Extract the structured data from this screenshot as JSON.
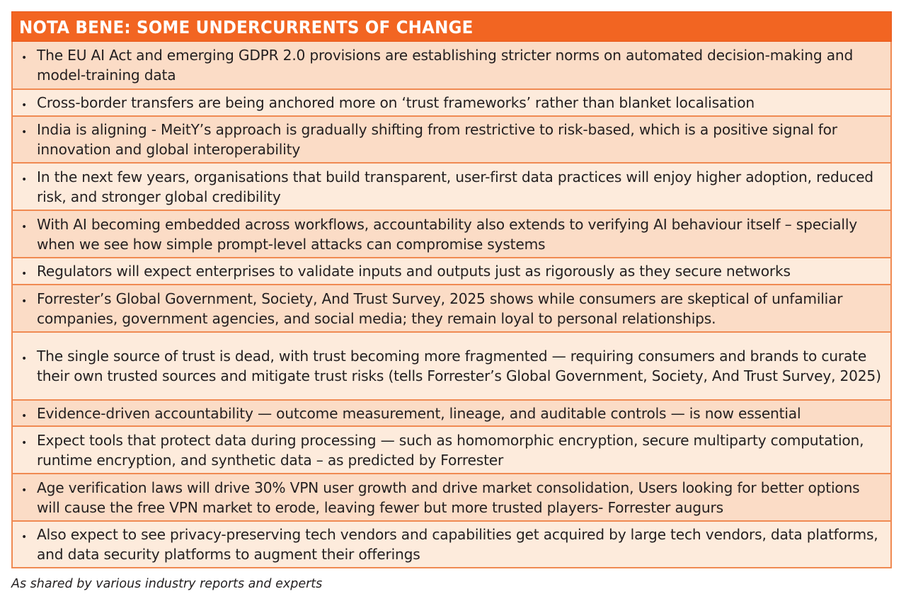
{
  "panel": {
    "title": "NOTA BENE: SOME UNDERCURRENTS OF CHANGE",
    "bullet_glyph": "•",
    "colors": {
      "header": "#f26522",
      "row_light": "#fdebdc",
      "row_dark": "#fbdcc6",
      "border": "#f08a52"
    },
    "items": [
      {
        "text": "The EU AI Act and emerging GDPR 2.0 provisions are establishing stricter norms on automated decision-making and model-training data"
      },
      {
        "text": "Cross-border transfers are being anchored more on ‘trust frameworks’ rather than blanket localisation"
      },
      {
        "text": "India is aligning - MeitY’s approach is gradually shifting from restrictive to risk-based, which is a positive signal for innovation and global interoperability"
      },
      {
        "text": "In the next few years, organisations that build transparent, user-first data practices will enjoy higher adoption, reduced risk, and stronger global credibility"
      },
      {
        "text": "With AI becoming embedded across workflows, accountability also extends to verifying AI behaviour itself – specially when we see how simple prompt-level attacks can compromise systems"
      },
      {
        "text": "Regulators will expect enterprises to validate inputs and outputs just as rigorously as they secure networks"
      },
      {
        "text": "Forrester’s Global Government, Society, And Trust Survey, 2025 shows while consumers are skeptical of unfamiliar companies, government agencies, and social media; they remain loyal to personal relationships."
      },
      {
        "text": "The single source of trust is dead, with trust becoming more fragmented — requiring consumers and brands to curate their own trusted sources and mitigate trust risks (tells Forrester’s Global Government, Society, And Trust Survey, 2025)"
      },
      {
        "text": "Evidence-driven accountability — outcome measurement, lineage, and auditable controls — is now essential"
      },
      {
        "text": "Expect tools that protect data during processing — such as homomorphic encryption, secure multiparty computation, runtime encryption, and synthetic data – as predicted by Forrester"
      },
      {
        "text": "Age verification laws will drive 30% VPN user growth and drive market consolidation, Users looking for better options will cause the free VPN market to erode, leaving fewer but more trusted players- Forrester augurs"
      },
      {
        "text": "Also expect to see privacy-preserving tech vendors and capabilities get acquired by large tech vendors, data platforms, and data security platforms to augment their offerings"
      }
    ]
  },
  "caption": "As shared by various industry reports and experts"
}
